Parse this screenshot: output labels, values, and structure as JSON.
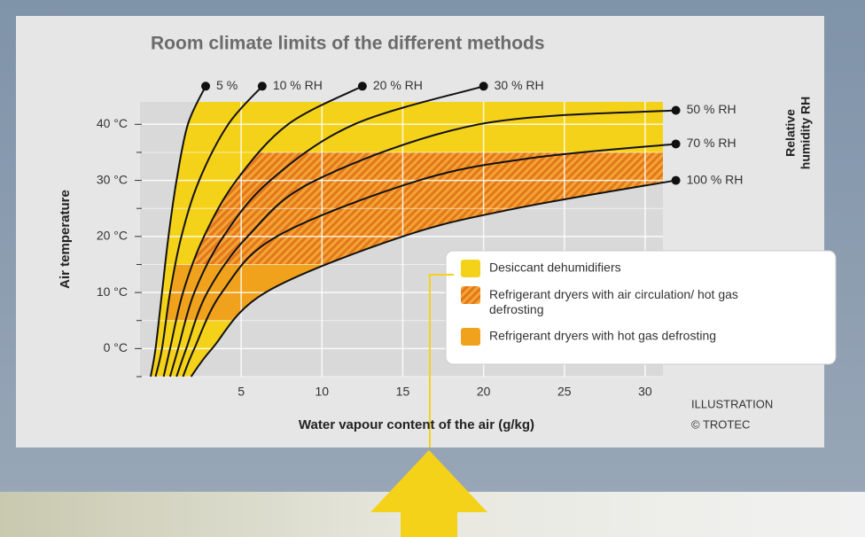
{
  "chart_data": {
    "type": "line",
    "title": "Room climate limits of the different methods",
    "x_label": "Water vapour content of the air (g/kg)",
    "y_label": "Air temperature",
    "rh_label": [
      "Relative",
      "humidity RH"
    ],
    "credit": [
      "ILLUSTRATION",
      "© TROTEC"
    ],
    "xlim": [
      -1.26,
      31.1
    ],
    "ylim": [
      -5,
      44
    ],
    "xticks": [
      5,
      10,
      15,
      20,
      25,
      30
    ],
    "yticks": [
      {
        "value": 0,
        "label": "0 °C"
      },
      {
        "value": 10,
        "label": "10 °C"
      },
      {
        "value": 20,
        "label": "20 °C"
      },
      {
        "value": 30,
        "label": "30 °C"
      },
      {
        "value": 40,
        "label": "40 °C"
      }
    ],
    "yminor": [
      -5,
      5,
      15,
      25,
      35
    ],
    "grid": true,
    "series": [
      {
        "name": "5 %",
        "color": "#111111",
        "x": [
          -0.6,
          -0.3,
          0.1,
          0.5,
          1.0,
          1.7,
          2.8
        ],
        "values": [
          -5,
          0,
          10,
          20,
          30,
          40,
          46.8
        ]
      },
      {
        "name": "10 % RH",
        "color": "#111111",
        "x": [
          -0.3,
          0.1,
          0.6,
          1.3,
          2.4,
          4.2,
          6.3
        ],
        "values": [
          -5,
          0,
          10,
          20,
          30,
          40,
          46.8
        ]
      },
      {
        "name": "20 % RH",
        "color": "#111111",
        "x": [
          0.2,
          0.6,
          1.4,
          2.7,
          4.7,
          7.9,
          12.5
        ],
        "values": [
          -5,
          0,
          10,
          20,
          30,
          40,
          46.8
        ]
      },
      {
        "name": "30 % RH",
        "color": "#111111",
        "x": [
          0.6,
          1.1,
          2.1,
          3.9,
          6.8,
          12,
          20
        ],
        "values": [
          -5,
          0,
          10,
          20,
          30,
          40,
          46.8
        ]
      },
      {
        "name": "50 % RH",
        "color": "#111111",
        "x": [
          1.0,
          1.6,
          2.9,
          5.4,
          9.6,
          19.7,
          31.9
        ],
        "values": [
          -5,
          0,
          10,
          20,
          30,
          40,
          42.5
        ]
      },
      {
        "name": "70 % RH",
        "color": "#111111",
        "x": [
          1.4,
          2.1,
          3.8,
          7.2,
          16,
          23,
          31.9
        ],
        "values": [
          -5,
          0,
          10,
          20,
          30,
          34,
          36.5
        ]
      },
      {
        "name": "100 % RH",
        "color": "#111111",
        "x": [
          1.9,
          3.2,
          6.5,
          15,
          22,
          31.9
        ],
        "values": [
          -5,
          0,
          10,
          20,
          25,
          30
        ]
      }
    ],
    "regions": [
      {
        "name": "Desiccant dehumidifiers",
        "color": "#f5d21a",
        "hatch": false,
        "from": 0,
        "to": 6,
        "tmin": -5,
        "tmax": 44
      },
      {
        "name": "Refrigerant dryers with air circulation/ hot gas defrosting",
        "color": "#ee9a2a",
        "hatch": true,
        "from": 2,
        "to": 6,
        "tmin": 15,
        "tmax": 35
      },
      {
        "name": "Refrigerant dryers with hot gas defrosting",
        "color": "#f0a21c",
        "hatch": false,
        "from": 1,
        "to": 6,
        "tmin": 5,
        "tmax": 15
      }
    ]
  }
}
